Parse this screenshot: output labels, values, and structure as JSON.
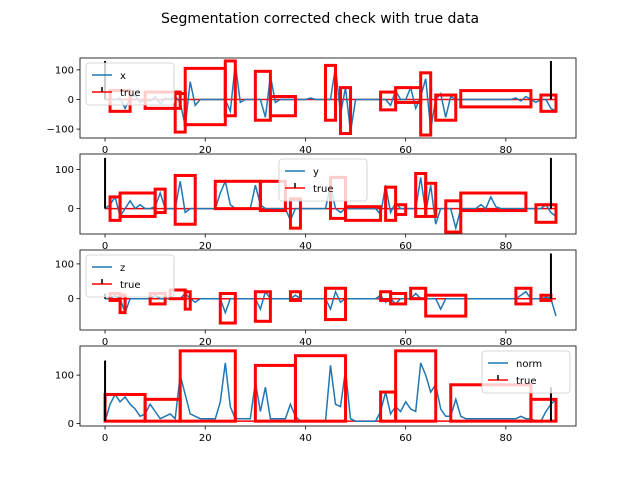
{
  "figure": {
    "title": "Segmentation corrected check with true data"
  },
  "colors": {
    "signal": "#1f77b4",
    "true": "#ff0000",
    "marker": "#000000",
    "frame": "#000000"
  },
  "chart_data": [
    {
      "type": "line",
      "xlim": [
        -5,
        94
      ],
      "ylim": [
        -130,
        140
      ],
      "xticks": [
        0,
        20,
        40,
        60,
        80
      ],
      "yticks": [
        -100,
        0,
        100
      ],
      "yticklabels": [
        "−100",
        "0",
        "100"
      ],
      "legend": {
        "placement": "top-left",
        "entries": [
          "x",
          "true"
        ]
      },
      "grid": false,
      "signal": {
        "name": "x",
        "x": [
          0,
          2,
          3,
          4,
          5,
          6,
          7,
          8,
          9,
          10,
          11,
          12,
          13,
          14,
          15,
          16,
          17,
          18,
          19,
          20,
          21,
          22,
          23,
          24,
          25,
          26,
          27,
          28,
          29,
          30,
          31,
          32,
          33,
          34,
          35,
          36,
          37,
          38,
          39,
          40,
          41,
          42,
          43,
          44,
          45,
          46,
          47,
          48,
          49,
          50,
          51,
          52,
          53,
          54,
          55,
          56,
          57,
          58,
          59,
          60,
          61,
          62,
          63,
          64,
          65,
          66,
          67,
          68,
          69,
          70,
          71,
          72,
          73,
          74,
          75,
          76,
          77,
          78,
          79,
          80,
          81,
          82,
          83,
          84,
          85,
          86,
          87,
          88,
          89,
          90
        ],
        "y": [
          0,
          0,
          5,
          -30,
          5,
          15,
          -10,
          0,
          -5,
          10,
          -15,
          5,
          0,
          10,
          -10,
          -90,
          60,
          -20,
          0,
          0,
          0,
          0,
          0,
          0,
          -40,
          120,
          -10,
          0,
          0,
          0,
          0,
          -60,
          80,
          -10,
          0,
          0,
          0,
          0,
          0,
          0,
          5,
          0,
          0,
          0,
          0,
          110,
          -50,
          40,
          -110,
          0,
          0,
          0,
          0,
          0,
          0,
          0,
          -20,
          30,
          0,
          0,
          40,
          -30,
          10,
          70,
          -100,
          0,
          20,
          -60,
          10,
          0,
          0,
          0,
          0,
          0,
          0,
          0,
          0,
          0,
          0,
          0,
          0,
          5,
          -5,
          10,
          0,
          -10,
          0,
          0,
          -30,
          -40
        ]
      },
      "truth": {
        "name": "true",
        "y": 0
      },
      "markers": [
        {
          "x": 0,
          "y": 130
        },
        {
          "x": 89,
          "y": 130
        }
      ],
      "segments": [
        {
          "x0": 1,
          "x1": 5,
          "y0": -40,
          "y1": 30
        },
        {
          "x0": 8,
          "x1": 15,
          "y0": -30,
          "y1": 25
        },
        {
          "x0": 14,
          "x1": 16,
          "y0": -110,
          "y1": 20
        },
        {
          "x0": 16,
          "x1": 24,
          "y0": -85,
          "y1": 105
        },
        {
          "x0": 24,
          "x1": 26,
          "y0": -55,
          "y1": 130
        },
        {
          "x0": 30,
          "x1": 33,
          "y0": -70,
          "y1": 95
        },
        {
          "x0": 33,
          "x1": 38,
          "y0": -55,
          "y1": 10
        },
        {
          "x0": 44,
          "x1": 46,
          "y0": -70,
          "y1": 115
        },
        {
          "x0": 47,
          "x1": 49,
          "y0": -115,
          "y1": 40
        },
        {
          "x0": 55,
          "x1": 58,
          "y0": -35,
          "y1": 25
        },
        {
          "x0": 58,
          "x1": 63,
          "y0": -10,
          "y1": 40
        },
        {
          "x0": 63,
          "x1": 65,
          "y0": -120,
          "y1": 90
        },
        {
          "x0": 66,
          "x1": 70,
          "y0": -70,
          "y1": 15
        },
        {
          "x0": 71,
          "x1": 85,
          "y0": -25,
          "y1": 30
        },
        {
          "x0": 87,
          "x1": 90,
          "y0": -40,
          "y1": 15
        }
      ]
    },
    {
      "type": "line",
      "xlim": [
        -5,
        94
      ],
      "ylim": [
        -65,
        140
      ],
      "xticks": [
        0,
        20,
        40,
        60,
        80
      ],
      "yticks": [
        0,
        100
      ],
      "yticklabels": [
        "0",
        "100"
      ],
      "legend": {
        "placement": "top-center",
        "entries": [
          "y",
          "true"
        ]
      },
      "grid": false,
      "signal": {
        "name": "y",
        "x": [
          0,
          1,
          2,
          3,
          4,
          5,
          6,
          7,
          8,
          9,
          10,
          11,
          12,
          13,
          14,
          15,
          16,
          17,
          18,
          19,
          20,
          21,
          22,
          23,
          24,
          25,
          26,
          27,
          28,
          29,
          30,
          31,
          32,
          33,
          34,
          35,
          36,
          37,
          38,
          39,
          40,
          41,
          42,
          43,
          44,
          45,
          46,
          47,
          48,
          49,
          50,
          51,
          52,
          53,
          54,
          55,
          56,
          57,
          58,
          59,
          60,
          61,
          62,
          63,
          64,
          65,
          66,
          67,
          68,
          69,
          70,
          71,
          72,
          73,
          74,
          75,
          76,
          77,
          78,
          79,
          80,
          81,
          82,
          83,
          84,
          85,
          86,
          87,
          88,
          89,
          90
        ],
        "y": [
          0,
          10,
          30,
          -20,
          0,
          20,
          0,
          10,
          0,
          0,
          5,
          40,
          0,
          0,
          0,
          70,
          -10,
          0,
          0,
          0,
          0,
          0,
          0,
          40,
          70,
          10,
          0,
          0,
          0,
          0,
          60,
          10,
          0,
          0,
          0,
          0,
          0,
          -30,
          0,
          0,
          0,
          0,
          0,
          0,
          0,
          60,
          0,
          -10,
          0,
          0,
          0,
          0,
          0,
          0,
          0,
          -15,
          60,
          -10,
          15,
          0,
          0,
          0,
          0,
          80,
          -10,
          60,
          -40,
          0,
          0,
          0,
          -50,
          0,
          0,
          0,
          0,
          10,
          0,
          30,
          5,
          0,
          0,
          0,
          0,
          0,
          0,
          0,
          0,
          0,
          10,
          -10,
          -20
        ]
      },
      "truth": {
        "name": "true",
        "y": 0
      },
      "markers": [
        {
          "x": 0,
          "y": 130
        },
        {
          "x": 89,
          "y": 130
        }
      ],
      "segments": [
        {
          "x0": 1,
          "x1": 3,
          "y0": -30,
          "y1": 30
        },
        {
          "x0": 3,
          "x1": 10,
          "y0": -20,
          "y1": 40
        },
        {
          "x0": 10,
          "x1": 12,
          "y0": -10,
          "y1": 50
        },
        {
          "x0": 14,
          "x1": 18,
          "y0": -40,
          "y1": 85
        },
        {
          "x0": 22,
          "x1": 31,
          "y0": 0,
          "y1": 70
        },
        {
          "x0": 31,
          "x1": 36,
          "y0": -5,
          "y1": 70
        },
        {
          "x0": 37,
          "x1": 39,
          "y0": -50,
          "y1": 25
        },
        {
          "x0": 45,
          "x1": 48,
          "y0": -25,
          "y1": 80
        },
        {
          "x0": 48,
          "x1": 55,
          "y0": -30,
          "y1": 5
        },
        {
          "x0": 56,
          "x1": 58,
          "y0": -30,
          "y1": 55
        },
        {
          "x0": 58,
          "x1": 60,
          "y0": -15,
          "y1": 10
        },
        {
          "x0": 62,
          "x1": 64,
          "y0": -20,
          "y1": 90
        },
        {
          "x0": 64,
          "x1": 66,
          "y0": -20,
          "y1": 65
        },
        {
          "x0": 68,
          "x1": 71,
          "y0": -60,
          "y1": 20
        },
        {
          "x0": 71,
          "x1": 84,
          "y0": -5,
          "y1": 40
        },
        {
          "x0": 86,
          "x1": 90,
          "y0": -35,
          "y1": 10
        }
      ]
    },
    {
      "type": "line",
      "xlim": [
        -5,
        94
      ],
      "ylim": [
        -90,
        140
      ],
      "xticks": [
        0,
        20,
        40,
        60,
        80
      ],
      "yticks": [
        0,
        100
      ],
      "yticklabels": [
        "0",
        "100"
      ],
      "legend": {
        "placement": "top-left",
        "entries": [
          "z",
          "true"
        ]
      },
      "grid": false,
      "signal": {
        "name": "z",
        "x": [
          0,
          1,
          2,
          3,
          4,
          5,
          6,
          7,
          8,
          9,
          10,
          11,
          12,
          13,
          14,
          15,
          16,
          17,
          18,
          19,
          20,
          21,
          22,
          23,
          24,
          25,
          26,
          27,
          28,
          29,
          30,
          31,
          32,
          33,
          34,
          35,
          36,
          37,
          38,
          39,
          40,
          41,
          42,
          43,
          44,
          45,
          46,
          47,
          48,
          49,
          50,
          51,
          52,
          53,
          54,
          55,
          56,
          57,
          58,
          59,
          60,
          61,
          62,
          63,
          64,
          65,
          66,
          67,
          68,
          69,
          70,
          71,
          72,
          73,
          74,
          75,
          76,
          77,
          78,
          79,
          80,
          81,
          82,
          83,
          84,
          85,
          86,
          87,
          88,
          89,
          90
        ],
        "y": [
          0,
          0,
          10,
          0,
          -40,
          0,
          0,
          0,
          0,
          0,
          10,
          0,
          0,
          0,
          0,
          0,
          15,
          0,
          -10,
          0,
          0,
          0,
          0,
          0,
          -40,
          0,
          0,
          0,
          0,
          0,
          0,
          -30,
          20,
          0,
          0,
          0,
          0,
          0,
          10,
          0,
          0,
          0,
          0,
          0,
          0,
          -30,
          20,
          -10,
          0,
          0,
          0,
          0,
          0,
          0,
          0,
          10,
          -10,
          0,
          -15,
          0,
          0,
          0,
          15,
          0,
          0,
          0,
          0,
          -30,
          0,
          0,
          0,
          0,
          0,
          0,
          0,
          0,
          0,
          0,
          0,
          0,
          0,
          0,
          0,
          10,
          20,
          0,
          0,
          0,
          5,
          0,
          -50
        ]
      },
      "truth": {
        "name": "true",
        "y": 0
      },
      "markers": [
        {
          "x": 0,
          "y": 15
        },
        {
          "x": 89,
          "y": 130
        }
      ],
      "segments": [
        {
          "x0": 1,
          "x1": 3,
          "y0": -5,
          "y1": 15
        },
        {
          "x0": 3,
          "x1": 4,
          "y0": -40,
          "y1": 10
        },
        {
          "x0": 9,
          "x1": 12,
          "y0": -15,
          "y1": 15
        },
        {
          "x0": 13,
          "x1": 16,
          "y0": 0,
          "y1": 25
        },
        {
          "x0": 16,
          "x1": 17,
          "y0": -30,
          "y1": 20
        },
        {
          "x0": 23,
          "x1": 26,
          "y0": -70,
          "y1": 15
        },
        {
          "x0": 30,
          "x1": 33,
          "y0": -65,
          "y1": 20
        },
        {
          "x0": 37,
          "x1": 39,
          "y0": -5,
          "y1": 20
        },
        {
          "x0": 44,
          "x1": 48,
          "y0": -60,
          "y1": 30
        },
        {
          "x0": 55,
          "x1": 57,
          "y0": -5,
          "y1": 20
        },
        {
          "x0": 57,
          "x1": 60,
          "y0": -15,
          "y1": 15
        },
        {
          "x0": 61,
          "x1": 64,
          "y0": 0,
          "y1": 30
        },
        {
          "x0": 64,
          "x1": 72,
          "y0": -50,
          "y1": 10
        },
        {
          "x0": 82,
          "x1": 85,
          "y0": -15,
          "y1": 30
        },
        {
          "x0": 87,
          "x1": 89,
          "y0": -5,
          "y1": 10
        }
      ]
    },
    {
      "type": "line",
      "xlim": [
        -5,
        94
      ],
      "ylim": [
        -5,
        160
      ],
      "xticks": [
        0,
        20,
        40,
        60,
        80
      ],
      "yticks": [
        0,
        100
      ],
      "yticklabels": [
        "0",
        "100"
      ],
      "legend": {
        "placement": "top-right",
        "entries": [
          "norm",
          "true"
        ]
      },
      "grid": false,
      "signal": {
        "name": "norm",
        "x": [
          0,
          1,
          2,
          3,
          4,
          5,
          6,
          7,
          8,
          9,
          10,
          11,
          12,
          13,
          14,
          15,
          16,
          17,
          18,
          19,
          20,
          21,
          22,
          23,
          24,
          25,
          26,
          27,
          28,
          29,
          30,
          31,
          32,
          33,
          34,
          35,
          36,
          37,
          38,
          39,
          40,
          41,
          42,
          43,
          44,
          45,
          46,
          47,
          48,
          49,
          50,
          51,
          52,
          53,
          54,
          55,
          56,
          57,
          58,
          59,
          60,
          61,
          62,
          63,
          64,
          65,
          66,
          67,
          68,
          69,
          70,
          71,
          72,
          73,
          74,
          75,
          76,
          77,
          78,
          79,
          80,
          81,
          82,
          83,
          84,
          85,
          86,
          87,
          88,
          89,
          90
        ],
        "y": [
          5,
          40,
          60,
          45,
          55,
          40,
          30,
          15,
          20,
          40,
          25,
          10,
          15,
          20,
          10,
          100,
          60,
          20,
          15,
          10,
          10,
          10,
          10,
          45,
          125,
          35,
          10,
          10,
          10,
          10,
          85,
          25,
          75,
          10,
          10,
          10,
          10,
          40,
          15,
          5,
          5,
          5,
          5,
          5,
          5,
          120,
          40,
          35,
          110,
          10,
          5,
          5,
          5,
          5,
          5,
          25,
          65,
          20,
          35,
          25,
          45,
          30,
          25,
          125,
          100,
          65,
          80,
          30,
          15,
          15,
          50,
          15,
          10,
          10,
          10,
          10,
          10,
          10,
          10,
          10,
          10,
          10,
          10,
          15,
          10,
          10,
          5,
          5,
          25,
          40,
          50
        ]
      },
      "truth": {
        "name": "true",
        "y": 5
      },
      "markers": [
        {
          "x": 0,
          "y": 130
        },
        {
          "x": 89,
          "y": 75
        }
      ],
      "segments": [
        {
          "x0": 0,
          "x1": 8,
          "y0": 5,
          "y1": 60
        },
        {
          "x0": 8,
          "x1": 15,
          "y0": 5,
          "y1": 50
        },
        {
          "x0": 15,
          "x1": 26,
          "y0": 5,
          "y1": 150
        },
        {
          "x0": 30,
          "x1": 38,
          "y0": 5,
          "y1": 120
        },
        {
          "x0": 38,
          "x1": 48,
          "y0": 5,
          "y1": 140
        },
        {
          "x0": 55,
          "x1": 58,
          "y0": 5,
          "y1": 65
        },
        {
          "x0": 58,
          "x1": 66,
          "y0": 5,
          "y1": 150
        },
        {
          "x0": 69,
          "x1": 85,
          "y0": 5,
          "y1": 80
        },
        {
          "x0": 85,
          "x1": 90,
          "y0": 5,
          "y1": 50
        }
      ]
    }
  ]
}
